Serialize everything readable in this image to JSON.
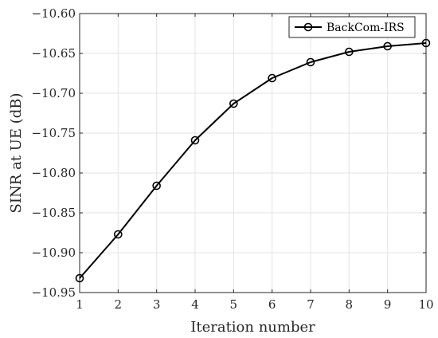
{
  "chart_data": {
    "type": "line",
    "title": "",
    "xlabel": "Iteration number",
    "ylabel": "SINR at UE (dB)",
    "xlim": [
      1,
      10
    ],
    "ylim": [
      -10.95,
      -10.6
    ],
    "xticks": [
      1,
      2,
      3,
      4,
      5,
      6,
      7,
      8,
      9,
      10
    ],
    "xtick_labels": [
      "1",
      "2",
      "3",
      "4",
      "5",
      "6",
      "7",
      "8",
      "9",
      "10"
    ],
    "yticks": [
      -10.95,
      -10.9,
      -10.85,
      -10.8,
      -10.75,
      -10.7,
      -10.65,
      -10.6
    ],
    "ytick_labels": [
      "−10.95",
      "−10.90",
      "−10.85",
      "−10.80",
      "−10.75",
      "−10.70",
      "−10.65",
      "−10.60"
    ],
    "grid": true,
    "legend_position": "top-right",
    "series": [
      {
        "name": "BackCom-IRS",
        "marker": "circle",
        "color": "#000000",
        "x": [
          1,
          2,
          3,
          4,
          5,
          6,
          7,
          8,
          9,
          10
        ],
        "values": [
          -10.932,
          -10.877,
          -10.816,
          -10.759,
          -10.713,
          -10.681,
          -10.661,
          -10.648,
          -10.641,
          -10.637
        ]
      }
    ]
  }
}
